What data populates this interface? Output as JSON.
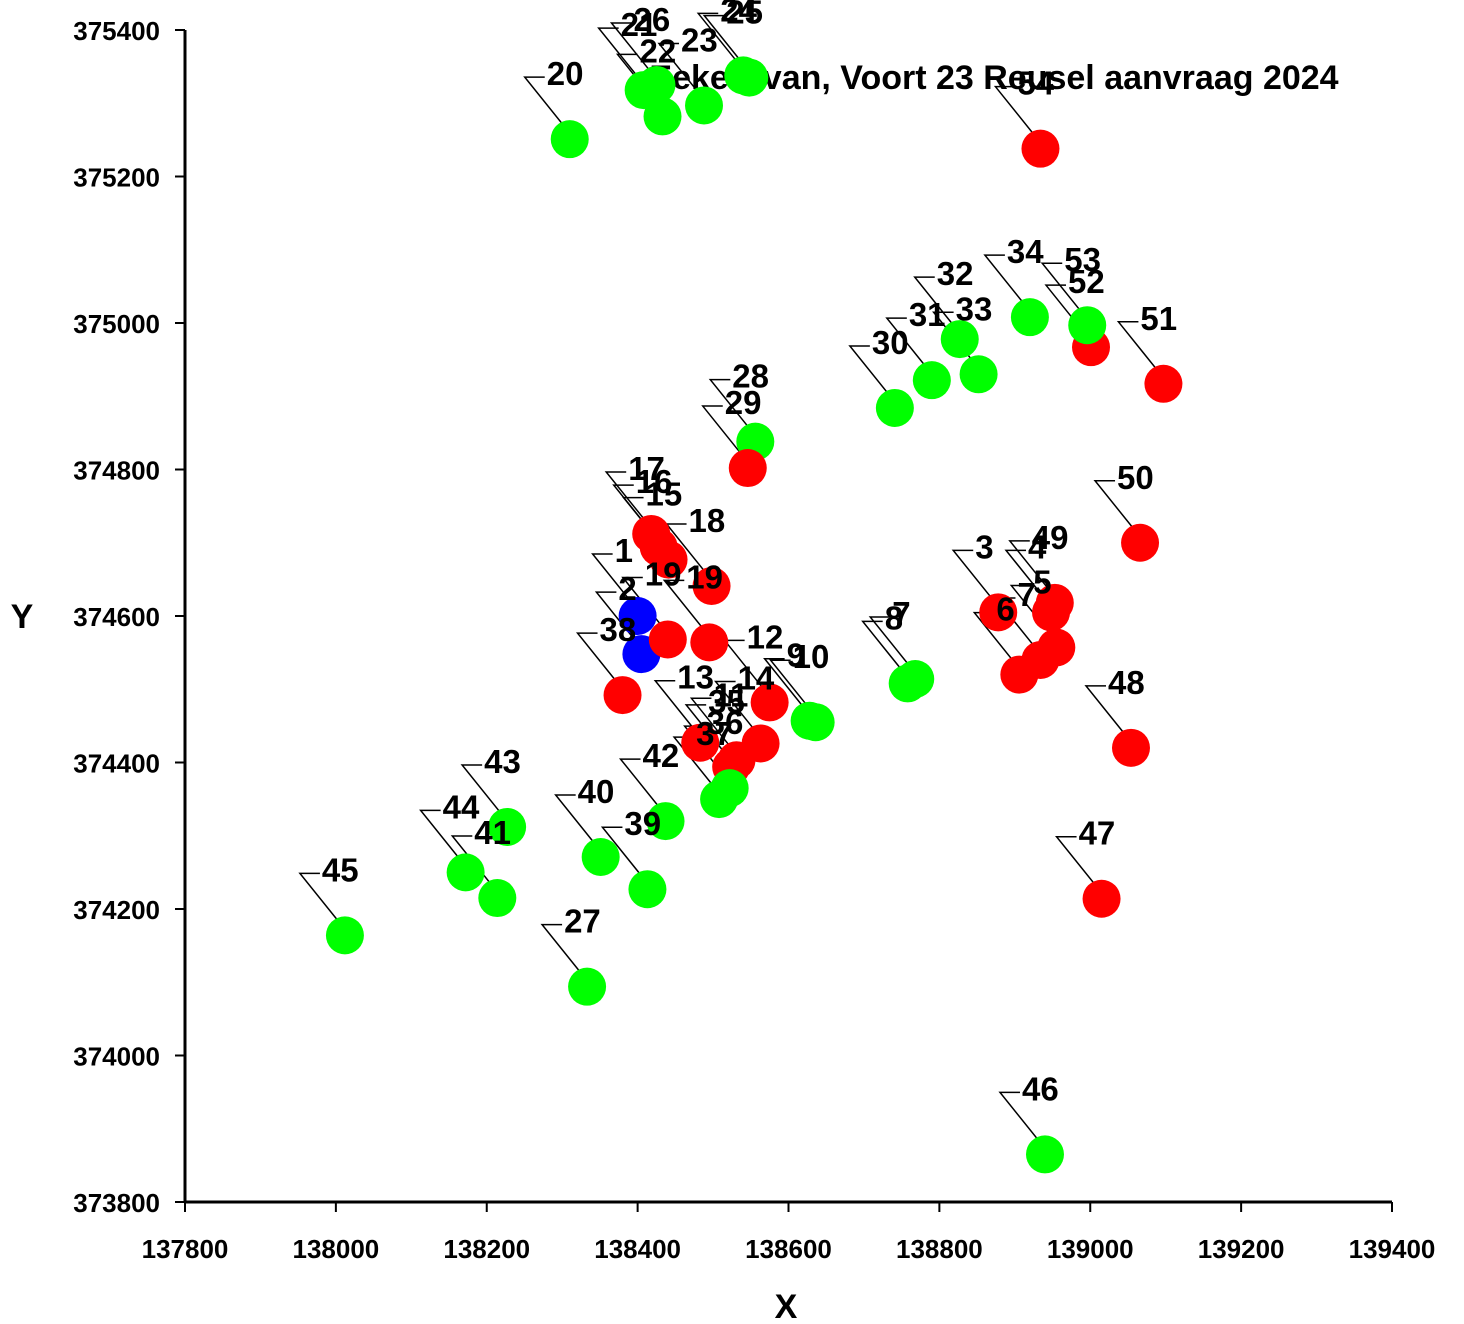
{
  "chart_data": {
    "type": "scatter",
    "title": "Eekert van, Voort 23 Reusel aanvraag 2024",
    "xlabel": "X",
    "ylabel": "Y",
    "xlim": [
      137800,
      139400
    ],
    "ylim": [
      373800,
      375400
    ],
    "xticks": [
      137800,
      138000,
      138200,
      138400,
      138600,
      138800,
      139000,
      139200,
      139400
    ],
    "yticks": [
      373800,
      374000,
      374200,
      374400,
      374600,
      374800,
      375000,
      375200,
      375400
    ],
    "grid": false,
    "colors": {
      "red": "#ff0000",
      "green": "#00ff00",
      "blue": "#0000ff"
    },
    "points": [
      {
        "label": "1",
        "x": 138400,
        "y": 374600,
        "color": "blue"
      },
      {
        "label": "2",
        "x": 138405,
        "y": 374548,
        "color": "blue"
      },
      {
        "label": "3",
        "x": 138878,
        "y": 374605,
        "color": "red"
      },
      {
        "label": "4",
        "x": 138948,
        "y": 374605,
        "color": "red"
      },
      {
        "label": "5",
        "x": 138955,
        "y": 374557,
        "color": "red"
      },
      {
        "label": "6",
        "x": 138906,
        "y": 374520,
        "color": "red"
      },
      {
        "label": "7",
        "x": 138934,
        "y": 374540,
        "color": "red"
      },
      {
        "label": "7",
        "x": 138768,
        "y": 374514,
        "color": "green"
      },
      {
        "label": "8",
        "x": 138758,
        "y": 374508,
        "color": "green"
      },
      {
        "label": "9",
        "x": 138628,
        "y": 374457,
        "color": "green"
      },
      {
        "label": "10",
        "x": 138636,
        "y": 374455,
        "color": "green"
      },
      {
        "label": "11",
        "x": 138531,
        "y": 374403,
        "color": "red"
      },
      {
        "label": "12",
        "x": 138575,
        "y": 374482,
        "color": "red"
      },
      {
        "label": "13",
        "x": 138483,
        "y": 374427,
        "color": "red"
      },
      {
        "label": "14",
        "x": 138563,
        "y": 374426,
        "color": "red"
      },
      {
        "label": "15",
        "x": 138441,
        "y": 374677,
        "color": "red"
      },
      {
        "label": "16",
        "x": 138428,
        "y": 374694,
        "color": "red"
      },
      {
        "label": "17",
        "x": 138418,
        "y": 374712,
        "color": "red"
      },
      {
        "label": "18",
        "x": 138498,
        "y": 374641,
        "color": "red"
      },
      {
        "label": "19",
        "x": 138440,
        "y": 374568,
        "color": "red"
      },
      {
        "label": "19",
        "x": 138495,
        "y": 374564,
        "color": "red"
      },
      {
        "label": "20",
        "x": 138310,
        "y": 375251,
        "color": "green"
      },
      {
        "label": "21",
        "x": 138408,
        "y": 375318,
        "color": "green"
      },
      {
        "label": "22",
        "x": 138433,
        "y": 375282,
        "color": "green"
      },
      {
        "label": "23",
        "x": 138488,
        "y": 375297,
        "color": "green"
      },
      {
        "label": "24",
        "x": 138540,
        "y": 375338,
        "color": "green"
      },
      {
        "label": "25",
        "x": 138548,
        "y": 375335,
        "color": "green"
      },
      {
        "label": "26",
        "x": 138425,
        "y": 375325,
        "color": "green"
      },
      {
        "label": "27",
        "x": 138333,
        "y": 374094,
        "color": "green"
      },
      {
        "label": "28",
        "x": 138556,
        "y": 374838,
        "color": "green"
      },
      {
        "label": "29",
        "x": 138546,
        "y": 374802,
        "color": "red"
      },
      {
        "label": "30",
        "x": 138741,
        "y": 374884,
        "color": "green"
      },
      {
        "label": "31",
        "x": 138790,
        "y": 374922,
        "color": "green"
      },
      {
        "label": "32",
        "x": 138827,
        "y": 374978,
        "color": "green"
      },
      {
        "label": "33",
        "x": 138852,
        "y": 374930,
        "color": "green"
      },
      {
        "label": "34",
        "x": 138920,
        "y": 375008,
        "color": "green"
      },
      {
        "label": "35",
        "x": 138524,
        "y": 374394,
        "color": "red"
      },
      {
        "label": "36",
        "x": 138522,
        "y": 374365,
        "color": "green"
      },
      {
        "label": "37",
        "x": 138508,
        "y": 374350,
        "color": "green"
      },
      {
        "label": "38",
        "x": 138380,
        "y": 374492,
        "color": "red"
      },
      {
        "label": "39",
        "x": 138413,
        "y": 374227,
        "color": "green"
      },
      {
        "label": "40",
        "x": 138351,
        "y": 374271,
        "color": "green"
      },
      {
        "label": "41",
        "x": 138214,
        "y": 374215,
        "color": "green"
      },
      {
        "label": "42",
        "x": 138437,
        "y": 374320,
        "color": "green"
      },
      {
        "label": "43",
        "x": 138227,
        "y": 374312,
        "color": "green"
      },
      {
        "label": "44",
        "x": 138172,
        "y": 374250,
        "color": "green"
      },
      {
        "label": "45",
        "x": 138012,
        "y": 374164,
        "color": "green"
      },
      {
        "label": "46",
        "x": 138940,
        "y": 373865,
        "color": "green"
      },
      {
        "label": "47",
        "x": 139015,
        "y": 374214,
        "color": "red"
      },
      {
        "label": "48",
        "x": 139054,
        "y": 374420,
        "color": "red"
      },
      {
        "label": "49",
        "x": 138953,
        "y": 374618,
        "color": "red"
      },
      {
        "label": "50",
        "x": 139066,
        "y": 374700,
        "color": "red"
      },
      {
        "label": "51",
        "x": 139097,
        "y": 374917,
        "color": "red"
      },
      {
        "label": "52",
        "x": 139001,
        "y": 374967,
        "color": "red"
      },
      {
        "label": "53",
        "x": 138996,
        "y": 374997,
        "color": "green"
      },
      {
        "label": "54",
        "x": 138934,
        "y": 375238,
        "color": "red"
      }
    ]
  }
}
